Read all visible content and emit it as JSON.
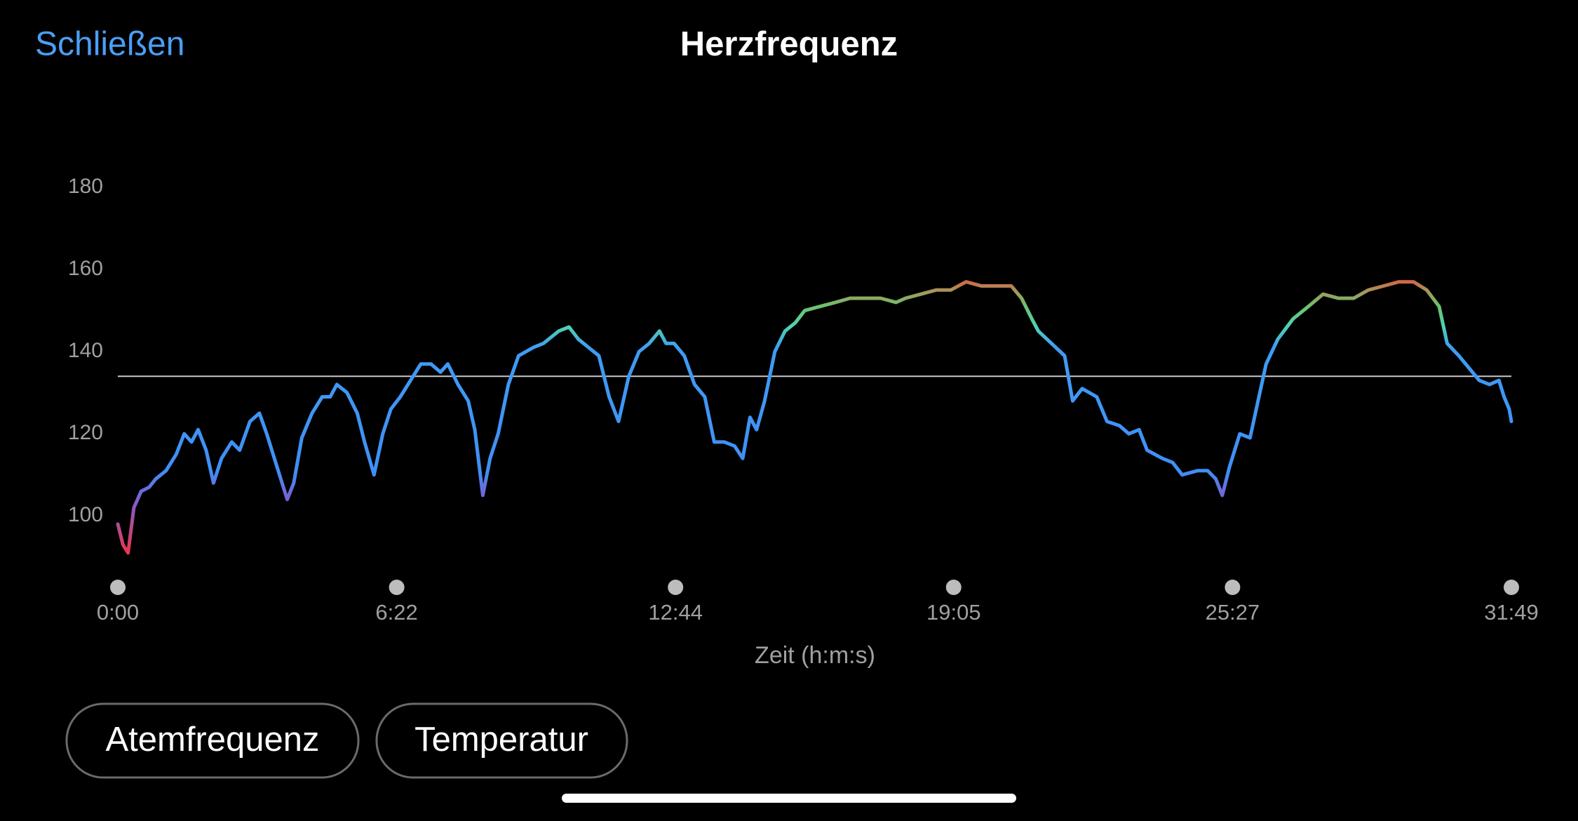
{
  "ui": {
    "close": "Schließen",
    "buttons": [
      "Atemfrequenz",
      "Temperatur"
    ]
  },
  "chart_data": {
    "type": "line",
    "title": "Herzfrequenz",
    "x_label": "Zeit (h:m:s)",
    "xlim": [
      0,
      1909
    ],
    "xticks": [
      {
        "value": 0,
        "label": "0:00"
      },
      {
        "value": 382,
        "label": "6:22"
      },
      {
        "value": 764,
        "label": "12:44"
      },
      {
        "value": 1145,
        "label": "19:05"
      },
      {
        "value": 1527,
        "label": "25:27"
      },
      {
        "value": 1909,
        "label": "31:49"
      }
    ],
    "ylim": [
      85,
      180
    ],
    "yticks": [
      100,
      120,
      140,
      160,
      180
    ],
    "reference_line": 134,
    "reference_color": "#c8c8c8",
    "color_scale": [
      {
        "value": 91,
        "color": "#e8384a"
      },
      {
        "value": 104,
        "color": "#7a5fd2"
      },
      {
        "value": 111,
        "color": "#3f8ff6"
      },
      {
        "value": 141,
        "color": "#3f9cf4"
      },
      {
        "value": 146,
        "color": "#4fd2b2"
      },
      {
        "value": 151,
        "color": "#6cc36c"
      },
      {
        "value": 155,
        "color": "#a7925a"
      },
      {
        "value": 158,
        "color": "#e2553f"
      }
    ],
    "x": [
      0,
      7,
      14,
      22,
      32,
      43,
      52,
      66,
      80,
      91,
      101,
      110,
      121,
      131,
      142,
      156,
      167,
      181,
      194,
      204,
      218,
      232,
      241,
      252,
      266,
      280,
      291,
      300,
      314,
      328,
      338,
      351,
      363,
      374,
      387,
      401,
      415,
      429,
      442,
      452,
      466,
      480,
      489,
      500,
      510,
      521,
      535,
      549,
      569,
      583,
      604,
      618,
      631,
      645,
      659,
      673,
      686,
      700,
      714,
      728,
      742,
      751,
      762,
      776,
      790,
      804,
      817,
      831,
      845,
      856,
      866,
      875,
      886,
      900,
      914,
      928,
      941,
      962,
      983,
      1003,
      1024,
      1045,
      1066,
      1079,
      1100,
      1121,
      1141,
      1162,
      1183,
      1203,
      1224,
      1238,
      1252,
      1261,
      1279,
      1297,
      1308,
      1321,
      1341,
      1355,
      1372,
      1385,
      1399,
      1410,
      1431,
      1445,
      1458,
      1479,
      1493,
      1504,
      1513,
      1523,
      1537,
      1551,
      1562,
      1573,
      1589,
      1610,
      1631,
      1651,
      1672,
      1693,
      1713,
      1734,
      1755,
      1775,
      1793,
      1810,
      1821,
      1837,
      1851,
      1865,
      1879,
      1892,
      1899,
      1906,
      1909
    ],
    "values": [
      98,
      93,
      91,
      102,
      106,
      107,
      109,
      111,
      115,
      120,
      118,
      121,
      116,
      108,
      114,
      118,
      116,
      123,
      125,
      120,
      112,
      104,
      108,
      119,
      125,
      129,
      129,
      132,
      130,
      125,
      118,
      110,
      120,
      126,
      129,
      133,
      137,
      137,
      135,
      137,
      132,
      128,
      121,
      105,
      114,
      120,
      132,
      139,
      141,
      142,
      145,
      146,
      143,
      141,
      139,
      129,
      123,
      134,
      140,
      142,
      145,
      142,
      142,
      139,
      132,
      129,
      118,
      118,
      117,
      114,
      124,
      121,
      128,
      140,
      145,
      147,
      150,
      151,
      152,
      153,
      153,
      153,
      152,
      153,
      154,
      155,
      155,
      157,
      156,
      156,
      156,
      153,
      148,
      145,
      142,
      139,
      128,
      131,
      129,
      123,
      122,
      120,
      121,
      116,
      114,
      113,
      110,
      111,
      111,
      109,
      105,
      112,
      120,
      119,
      128,
      137,
      143,
      148,
      151,
      154,
      153,
      153,
      155,
      156,
      157,
      157,
      155,
      151,
      142,
      139,
      136,
      133,
      132,
      133,
      129,
      126,
      123
    ]
  }
}
